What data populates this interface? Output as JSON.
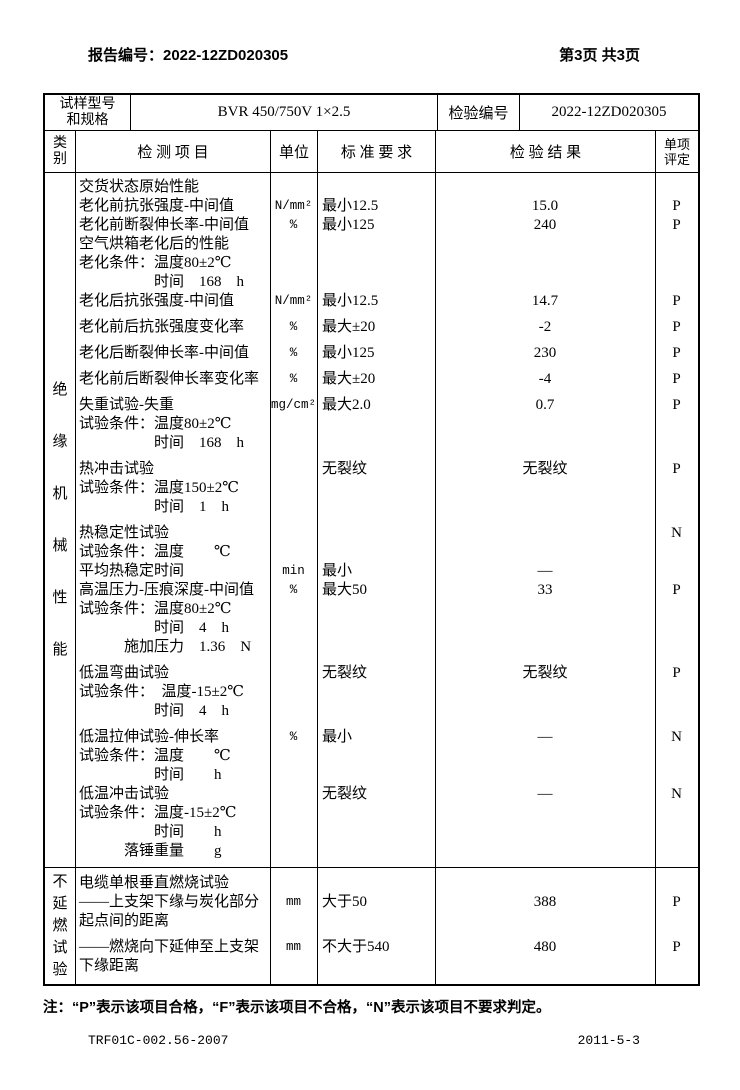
{
  "page_header": {
    "report_no": "报告编号：2022-12ZD020305",
    "page_info": "第3页 共3页"
  },
  "info_row": {
    "sample_label": "试样型号\n和规格",
    "sample_value": "BVR 450/750V 1×2.5",
    "inspect_no_label": "检验编号",
    "inspect_no_value": "2022-12ZD020305"
  },
  "columns": {
    "category": "类\n别",
    "item": "检 测 项 目",
    "unit": "单位",
    "standard": "标 准 要 求",
    "result": "检 验 结 果",
    "verdict": "单项\n评定"
  },
  "sections": [
    {
      "category_chars": [
        "绝",
        "缘",
        "机",
        "械",
        "性",
        "能"
      ],
      "lines": [
        {
          "item": "交货状态原始性能"
        },
        {
          "item": "老化前抗张强度-中间值",
          "unit": "N/mm²",
          "std": "最小12.5",
          "result": "15.0",
          "verdict": "P"
        },
        {
          "item": "老化前断裂伸长率-中间值",
          "unit": "%",
          "std": "最小125",
          "result": "240",
          "verdict": "P"
        },
        {
          "item": "空气烘箱老化后的性能"
        },
        {
          "item": "老化条件：温度80±2℃"
        },
        {
          "item": "　　　　　时间　168　h"
        },
        {
          "item": "老化后抗张强度-中间值",
          "unit": "N/mm²",
          "std": "最小12.5",
          "result": "14.7",
          "verdict": "P"
        },
        {
          "item": "老化前后抗张强度变化率",
          "unit": "%",
          "std": "最大±20",
          "result": "-2",
          "verdict": "P",
          "gap": true
        },
        {
          "item": "老化后断裂伸长率-中间值",
          "unit": "%",
          "std": "最小125",
          "result": "230",
          "verdict": "P",
          "gap": true
        },
        {
          "item": "老化前后断裂伸长率变化率",
          "unit": "%",
          "std": "最大±20",
          "result": "-4",
          "verdict": "P",
          "gap": true
        },
        {
          "item": "失重试验-失重",
          "unit": "mg/cm²",
          "std": "最大2.0",
          "result": "0.7",
          "verdict": "P",
          "gap": true
        },
        {
          "item": "试验条件：温度80±2℃"
        },
        {
          "item": "　　　　　时间　168　h"
        },
        {
          "item": "热冲击试验",
          "std": "无裂纹",
          "result": "无裂纹",
          "verdict": "P",
          "gap": true
        },
        {
          "item": "试验条件：温度150±2℃"
        },
        {
          "item": "　　　　　时间　1　h"
        },
        {
          "item": "热稳定性试验",
          "verdict": "N",
          "gap": true
        },
        {
          "item": "试验条件：温度　　℃"
        },
        {
          "item": "平均热稳定时间",
          "unit": "min",
          "std": "最小",
          "result": "—"
        },
        {
          "item": "高温压力-压痕深度-中间值",
          "unit": "%",
          "std": "最大50",
          "result": "33",
          "verdict": "P"
        },
        {
          "item": "试验条件：温度80±2℃"
        },
        {
          "item": "　　　　　时间　4　h"
        },
        {
          "item": "　　　施加压力　1.36　N"
        },
        {
          "item": "低温弯曲试验",
          "std": "无裂纹",
          "result": "无裂纹",
          "verdict": "P",
          "gap": true
        },
        {
          "item": "试验条件：　温度-15±2℃"
        },
        {
          "item": "　　　　　时间　4　h"
        },
        {
          "item": "低温拉伸试验-伸长率",
          "unit": "%",
          "std": "最小",
          "result": "—",
          "verdict": "N",
          "gap": true
        },
        {
          "item": "试验条件：温度　　℃"
        },
        {
          "item": "　　　　　时间　　h"
        },
        {
          "item": "低温冲击试验",
          "std": "无裂纹",
          "result": "—",
          "verdict": "N"
        },
        {
          "item": "试验条件：温度-15±2℃"
        },
        {
          "item": "　　　　　时间　　h"
        },
        {
          "item": "　　　落锤重量　　g"
        }
      ]
    },
    {
      "category_chars": [
        "不",
        "延",
        "燃",
        "试",
        "验"
      ],
      "lines": [
        {
          "item": "电缆单根垂直燃烧试验"
        },
        {
          "item": "——上支架下缘与炭化部分",
          "unit": "mm",
          "std": "大于50",
          "result": "388",
          "verdict": "P"
        },
        {
          "item": "起点间的距离"
        },
        {
          "item": "——燃烧向下延伸至上支架",
          "unit": "mm",
          "std": "不大于540",
          "result": "480",
          "verdict": "P",
          "gap": true
        },
        {
          "item": "下缘距离"
        }
      ]
    }
  ],
  "note": "注：“P”表示该项目合格，“F”表示该项目不合格，“N”表示该项目不要求判定。",
  "footer": {
    "doc_code": "TRF01C-002.56-2007",
    "date": "2011-5-3"
  }
}
